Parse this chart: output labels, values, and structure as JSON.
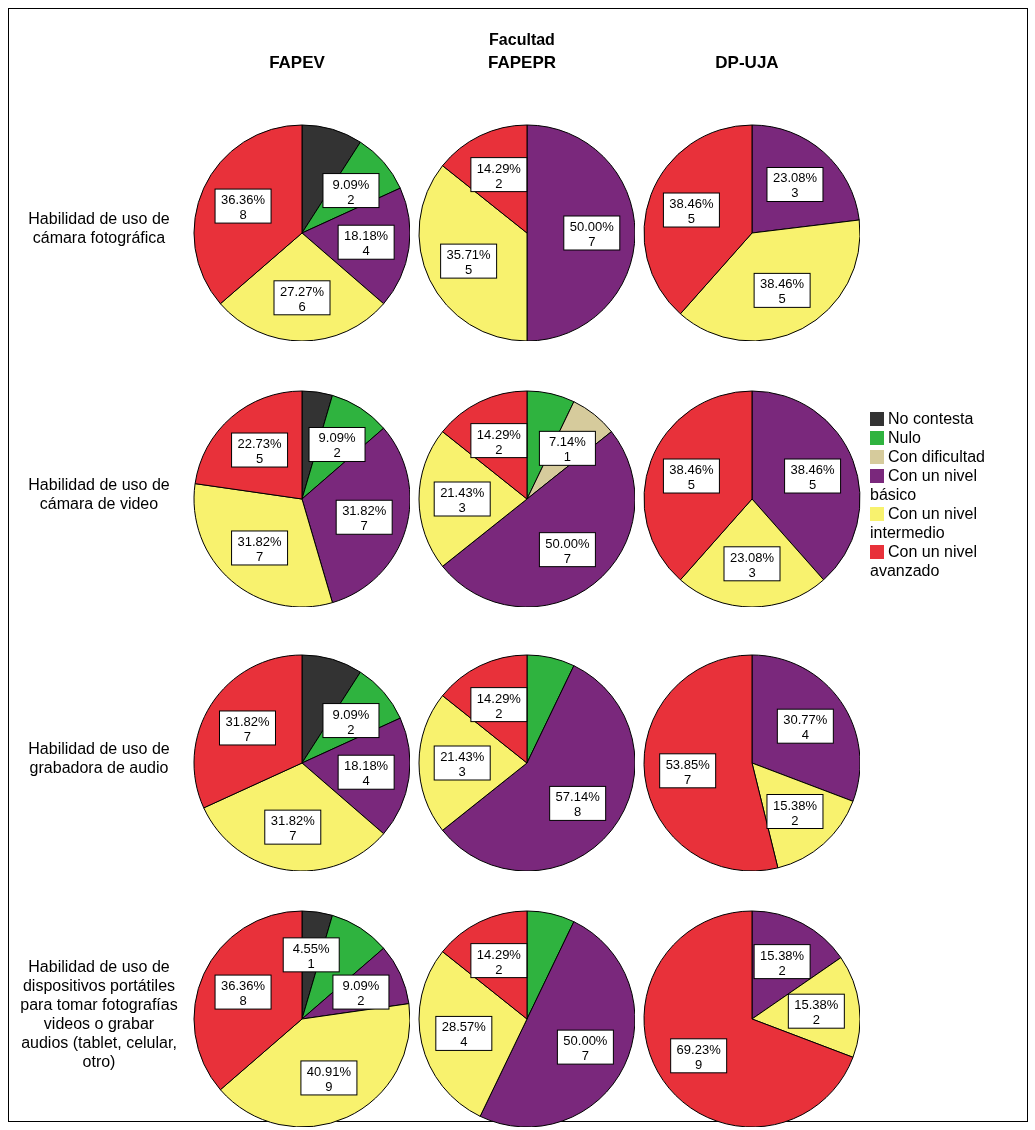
{
  "chart_data": [
    {
      "type": "other",
      "title": "Facultad"
    },
    {
      "type": "pie",
      "title": "FAPEV",
      "ylabel": "Habilidad de uso de cámara fotográfica",
      "categories": [
        null,
        null,
        null,
        null,
        null
      ],
      "values": [
        2,
        2,
        4,
        6,
        8
      ],
      "colors": [
        "#333333",
        "#2fb33f",
        "#7a287c",
        "#f8f26e",
        "#e8313a"
      ],
      "value_labels": [
        null,
        "9.09%\n2",
        "18.18%\n4",
        "27.27%\n6",
        "36.36%\n8"
      ]
    },
    {
      "type": "pie",
      "title": "FAPEPR",
      "categories": [
        null,
        null,
        null
      ],
      "values": [
        7,
        5,
        2
      ],
      "colors": [
        "#7a287c",
        "#f8f26e",
        "#e8313a"
      ],
      "value_labels": [
        "50.00%\n7",
        "35.71%\n5",
        "14.29%\n2"
      ]
    },
    {
      "type": "pie",
      "title": "DP-UJA",
      "categories": [
        null,
        null,
        null
      ],
      "values": [
        3,
        5,
        5
      ],
      "colors": [
        "#7a287c",
        "#f8f26e",
        "#e8313a"
      ],
      "value_labels": [
        "23.08%\n3",
        "38.46%\n5",
        "38.46%\n5"
      ]
    },
    {
      "type": "pie",
      "ylabel": "Habilidad de uso de cámara de video",
      "categories": [
        null,
        null,
        null,
        null,
        null
      ],
      "values": [
        1,
        2,
        7,
        7,
        5
      ],
      "colors": [
        "#333333",
        "#2fb33f",
        "#7a287c",
        "#f8f26e",
        "#e8313a"
      ],
      "value_labels": [
        null,
        "9.09%\n2",
        "31.82%\n7",
        "31.82%\n7",
        "22.73%\n5"
      ]
    },
    {
      "type": "pie",
      "categories": [
        null,
        null,
        null,
        null,
        null
      ],
      "values": [
        1,
        1,
        7,
        3,
        2
      ],
      "colors": [
        "#2fb33f",
        "#d6cb9c",
        "#7a287c",
        "#f8f26e",
        "#e8313a"
      ],
      "value_labels": [
        null,
        "7.14%\n1",
        "50.00%\n7",
        "21.43%\n3",
        "14.29%\n2"
      ]
    },
    {
      "type": "pie",
      "legend": "right",
      "categories": [
        "No contesta",
        "Nulo",
        "Con dificultad",
        "Con un nivel básico",
        "Con un nivel intermedio",
        "Con un nivel avanzado"
      ],
      "values": [
        0,
        0,
        0,
        5,
        3,
        5
      ],
      "colors": [
        "#333333",
        "#2fb33f",
        "#d6cb9c",
        "#7a287c",
        "#f8f26e",
        "#e8313a"
      ],
      "value_labels": [
        null,
        null,
        null,
        "38.46%\n5",
        "23.08%\n3",
        "38.46%\n5"
      ]
    },
    {
      "type": "pie",
      "ylabel": "Habilidad de uso de grabadora de audio",
      "categories": [
        null,
        null,
        null,
        null,
        null
      ],
      "values": [
        2,
        2,
        4,
        7,
        7
      ],
      "colors": [
        "#333333",
        "#2fb33f",
        "#7a287c",
        "#f8f26e",
        "#e8313a"
      ],
      "value_labels": [
        null,
        "9.09%\n2",
        "18.18%\n4",
        "31.82%\n7",
        "31.82%\n7"
      ]
    },
    {
      "type": "pie",
      "categories": [
        null,
        null,
        null,
        null
      ],
      "values": [
        1,
        8,
        3,
        2
      ],
      "colors": [
        "#2fb33f",
        "#7a287c",
        "#f8f26e",
        "#e8313a"
      ],
      "value_labels": [
        null,
        "57.14%\n8",
        "21.43%\n3",
        "14.29%\n2"
      ]
    },
    {
      "type": "pie",
      "categories": [
        null,
        null,
        null
      ],
      "values": [
        4,
        2,
        7
      ],
      "colors": [
        "#7a287c",
        "#f8f26e",
        "#e8313a"
      ],
      "value_labels": [
        "30.77%\n4",
        "15.38%\n2",
        "53.85%\n7"
      ]
    },
    {
      "type": "pie",
      "ylabel": "Habilidad de uso de dispositivos portátiles para tomar fotografías videos o grabar audios (tablet, celular, otro)",
      "categories": [
        null,
        null,
        null,
        null,
        null
      ],
      "values": [
        1,
        2,
        2,
        9,
        8
      ],
      "colors": [
        "#333333",
        "#2fb33f",
        "#7a287c",
        "#f8f26e",
        "#e8313a"
      ],
      "value_labels": [
        "4.55%\n1",
        null,
        "9.09%\n2",
        "40.91%\n9",
        "36.36%\n8"
      ]
    },
    {
      "type": "pie",
      "categories": [
        null,
        null,
        null,
        null
      ],
      "values": [
        1,
        7,
        4,
        2
      ],
      "colors": [
        "#2fb33f",
        "#7a287c",
        "#f8f26e",
        "#e8313a"
      ],
      "value_labels": [
        null,
        "50.00%\n7",
        "28.57%\n4",
        "14.29%\n2"
      ]
    },
    {
      "type": "pie",
      "categories": [
        null,
        null,
        null
      ],
      "values": [
        2,
        2,
        9
      ],
      "colors": [
        "#7a287c",
        "#f8f26e",
        "#e8313a"
      ],
      "value_labels": [
        "15.38%\n2",
        "15.38%\n2",
        "69.23%\n9"
      ]
    }
  ]
}
